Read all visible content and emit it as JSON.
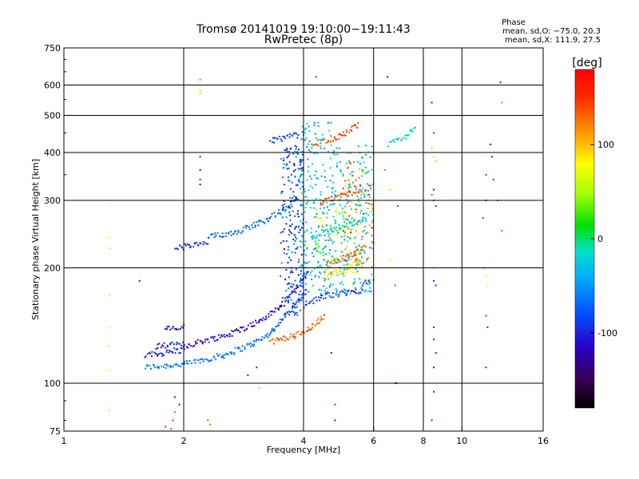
{
  "chart_data": {
    "type": "scatter",
    "title": "Tromsø 20141019 19:10:00−19:11:43",
    "subtitle": "RwPretec (8p)",
    "xlabel": "Frequency [MHz]",
    "ylabel": "Stationary phase Virtual Height [km]",
    "x_scale": "log",
    "y_scale": "log",
    "xlim": [
      1,
      16
    ],
    "ylim": [
      75,
      750
    ],
    "x_ticks": [
      1,
      2,
      4,
      6,
      8,
      10,
      16
    ],
    "y_ticks": [
      75,
      100,
      200,
      300,
      400,
      500,
      600,
      750
    ],
    "x_gridlines": [
      2,
      4,
      6,
      8,
      10
    ],
    "y_gridlines": [
      100,
      200,
      300,
      400,
      500,
      600
    ],
    "grid": true,
    "phase_info": {
      "title": "Phase",
      "line_o": "mean, sd,O: −75.0, 20.3",
      "line_x": "mean, sd,X: 111.9, 27.5"
    },
    "colorbar": {
      "label": "[deg]",
      "range": [
        -180,
        180
      ],
      "ticks": [
        100,
        0,
        -100
      ],
      "colormap": "rainbow",
      "placement": "right"
    },
    "traces": [
      {
        "x": [
          1.6,
          2.0
        ],
        "y": [
          110,
          112
        ],
        "phase": -80
      },
      {
        "x": [
          2.0,
          2.5,
          3.0,
          3.3
        ],
        "y": [
          112,
          118,
          127,
          135
        ],
        "phase": -85
      },
      {
        "x": [
          3.3,
          3.6,
          3.9,
          4.1
        ],
        "y": [
          135,
          150,
          165,
          175
        ],
        "phase": -95
      },
      {
        "x": [
          1.6,
          2.0
        ],
        "y": [
          118,
          122
        ],
        "phase": -115
      },
      {
        "x": [
          1.7,
          2.0
        ],
        "y": [
          125,
          126
        ],
        "phase": -120
      },
      {
        "x": [
          2.0,
          2.6,
          3.1,
          3.5
        ],
        "y": [
          125,
          134,
          145,
          158
        ],
        "phase": -130
      },
      {
        "x": [
          3.5,
          3.8,
          4.1
        ],
        "y": [
          158,
          175,
          195
        ],
        "phase": -125
      },
      {
        "x": [
          1.8,
          2.0
        ],
        "y": [
          138,
          140
        ],
        "phase": -130
      },
      {
        "x": [
          1.9,
          2.3
        ],
        "y": [
          225,
          232
        ],
        "phase": -110
      },
      {
        "x": [
          2.3,
          2.7,
          3.1,
          3.5,
          3.9
        ],
        "y": [
          240,
          248,
          262,
          280,
          300
        ],
        "phase": -90
      },
      {
        "x": [
          3.3,
          3.9
        ],
        "y": [
          430,
          445
        ],
        "phase": -110
      },
      {
        "x": [
          3.3,
          3.8,
          4.2,
          4.5
        ],
        "y": [
          128,
          133,
          140,
          150
        ],
        "phase": 145
      },
      {
        "x": [
          4.0,
          4.6,
          5.1,
          5.6
        ],
        "y": [
          160,
          170,
          172,
          175
        ],
        "phase": -110
      },
      {
        "x": [
          5.6,
          5.9
        ],
        "y": [
          180,
          185
        ],
        "phase": -105
      },
      {
        "x": [
          4.2,
          4.7,
          5.3,
          5.8
        ],
        "y": [
          240,
          250,
          262,
          270
        ],
        "phase": -30
      },
      {
        "x": [
          4.4,
          5.0,
          5.6
        ],
        "y": [
          295,
          310,
          320
        ],
        "phase": 150
      },
      {
        "x": [
          4.5,
          5.0,
          5.6
        ],
        "y": [
          190,
          195,
          210
        ],
        "phase": 100
      },
      {
        "x": [
          4.6,
          5.2,
          5.7
        ],
        "y": [
          205,
          215,
          225
        ],
        "phase": 140
      },
      {
        "x": [
          4.2,
          4.9,
          5.5
        ],
        "y": [
          420,
          440,
          470
        ],
        "phase": 150
      },
      {
        "x": [
          6.55,
          7.2,
          7.6
        ],
        "y": [
          420,
          440,
          465
        ],
        "phase": -30
      }
    ],
    "point_clouds": [
      {
        "xmin": 3.5,
        "xmax": 4.0,
        "ymin": 150,
        "ymax": 420,
        "phase": -100,
        "count": 200
      },
      {
        "xmin": 3.9,
        "xmax": 4.8,
        "ymin": 170,
        "ymax": 480,
        "phase": -50,
        "count": 250
      },
      {
        "xmin": 4.8,
        "xmax": 6.0,
        "ymin": 170,
        "ymax": 420,
        "phase": -40,
        "count": 190
      },
      {
        "xmin": 5.0,
        "xmax": 6.0,
        "ymin": 200,
        "ymax": 380,
        "phase": 140,
        "count": 80
      },
      {
        "xmin": 4.3,
        "xmax": 5.6,
        "ymin": 190,
        "ymax": 290,
        "phase": 60,
        "count": 60
      }
    ],
    "points": [
      {
        "x": 1.3,
        "y": 240,
        "phase": 90
      },
      {
        "x": 1.3,
        "y": 225,
        "phase": 100
      },
      {
        "x": 1.3,
        "y": 200,
        "phase": 95
      },
      {
        "x": 1.3,
        "y": 170,
        "phase": 100
      },
      {
        "x": 1.3,
        "y": 140,
        "phase": 85
      },
      {
        "x": 1.3,
        "y": 125,
        "phase": 100
      },
      {
        "x": 1.3,
        "y": 108,
        "phase": 90
      },
      {
        "x": 1.3,
        "y": 85,
        "phase": 95
      },
      {
        "x": 1.3,
        "y": 300,
        "phase": 110
      },
      {
        "x": 1.55,
        "y": 185,
        "phase": -120
      },
      {
        "x": 2.2,
        "y": 620,
        "phase": 140
      },
      {
        "x": 2.2,
        "y": 580,
        "phase": 110
      },
      {
        "x": 2.2,
        "y": 570,
        "phase": 100
      },
      {
        "x": 2.2,
        "y": 390,
        "phase": -110
      },
      {
        "x": 2.2,
        "y": 360,
        "phase": -120
      },
      {
        "x": 2.2,
        "y": 340,
        "phase": -105
      },
      {
        "x": 2.2,
        "y": 330,
        "phase": -120
      },
      {
        "x": 1.9,
        "y": 92,
        "phase": -120
      },
      {
        "x": 1.95,
        "y": 88,
        "phase": -110
      },
      {
        "x": 1.9,
        "y": 84,
        "phase": 150
      },
      {
        "x": 1.88,
        "y": 80,
        "phase": 160
      },
      {
        "x": 1.8,
        "y": 77,
        "phase": 170
      },
      {
        "x": 1.86,
        "y": 76,
        "phase": 150
      },
      {
        "x": 2.3,
        "y": 80,
        "phase": 150
      },
      {
        "x": 2.33,
        "y": 78,
        "phase": 140
      },
      {
        "x": 2.9,
        "y": 105,
        "phase": -120
      },
      {
        "x": 3.1,
        "y": 97,
        "phase": 40
      },
      {
        "x": 3.05,
        "y": 110,
        "phase": -110
      },
      {
        "x": 4.3,
        "y": 630,
        "phase": 160
      },
      {
        "x": 4.8,
        "y": 88,
        "phase": 170
      },
      {
        "x": 4.8,
        "y": 80,
        "phase": -120
      },
      {
        "x": 4.7,
        "y": 120,
        "phase": -115
      },
      {
        "x": 6.5,
        "y": 630,
        "phase": -120
      },
      {
        "x": 6.6,
        "y": 210,
        "phase": 100
      },
      {
        "x": 6.7,
        "y": 200,
        "phase": 60
      },
      {
        "x": 6.8,
        "y": 180,
        "phase": 150
      },
      {
        "x": 6.8,
        "y": 100,
        "phase": 170
      },
      {
        "x": 6.85,
        "y": 100,
        "phase": 160
      },
      {
        "x": 6.4,
        "y": 360,
        "phase": 140
      },
      {
        "x": 6.6,
        "y": 320,
        "phase": 110
      },
      {
        "x": 6.9,
        "y": 290,
        "phase": 160
      },
      {
        "x": 7.5,
        "y": 300,
        "phase": 90
      },
      {
        "x": 8.4,
        "y": 540,
        "phase": -120
      },
      {
        "x": 8.5,
        "y": 450,
        "phase": -110
      },
      {
        "x": 8.4,
        "y": 410,
        "phase": 110
      },
      {
        "x": 8.5,
        "y": 390,
        "phase": 60
      },
      {
        "x": 8.6,
        "y": 380,
        "phase": 40
      },
      {
        "x": 8.5,
        "y": 320,
        "phase": -130
      },
      {
        "x": 8.4,
        "y": 310,
        "phase": 150
      },
      {
        "x": 8.5,
        "y": 300,
        "phase": 160
      },
      {
        "x": 8.6,
        "y": 290,
        "phase": -110
      },
      {
        "x": 8.5,
        "y": 200,
        "phase": -20
      },
      {
        "x": 8.5,
        "y": 185,
        "phase": -120
      },
      {
        "x": 8.6,
        "y": 180,
        "phase": -110
      },
      {
        "x": 8.5,
        "y": 140,
        "phase": -120
      },
      {
        "x": 8.5,
        "y": 130,
        "phase": -115
      },
      {
        "x": 8.6,
        "y": 120,
        "phase": -110
      },
      {
        "x": 8.5,
        "y": 110,
        "phase": -125
      },
      {
        "x": 8.5,
        "y": 95,
        "phase": -120
      },
      {
        "x": 8.4,
        "y": 80,
        "phase": -115
      },
      {
        "x": 12.5,
        "y": 610,
        "phase": -115
      },
      {
        "x": 12.6,
        "y": 540,
        "phase": 140
      },
      {
        "x": 11.8,
        "y": 420,
        "phase": -130
      },
      {
        "x": 11.9,
        "y": 390,
        "phase": -110
      },
      {
        "x": 11.5,
        "y": 350,
        "phase": -100
      },
      {
        "x": 12.0,
        "y": 340,
        "phase": -110
      },
      {
        "x": 12.3,
        "y": 300,
        "phase": 150
      },
      {
        "x": 11.5,
        "y": 300,
        "phase": -100
      },
      {
        "x": 11.3,
        "y": 270,
        "phase": -90
      },
      {
        "x": 12.6,
        "y": 250,
        "phase": 150
      },
      {
        "x": 11.4,
        "y": 200,
        "phase": -20
      },
      {
        "x": 11.5,
        "y": 190,
        "phase": 80
      },
      {
        "x": 11.6,
        "y": 180,
        "phase": 85
      },
      {
        "x": 11.5,
        "y": 150,
        "phase": -100
      },
      {
        "x": 11.6,
        "y": 140,
        "phase": -110
      },
      {
        "x": 11.5,
        "y": 110,
        "phase": -110
      }
    ]
  }
}
